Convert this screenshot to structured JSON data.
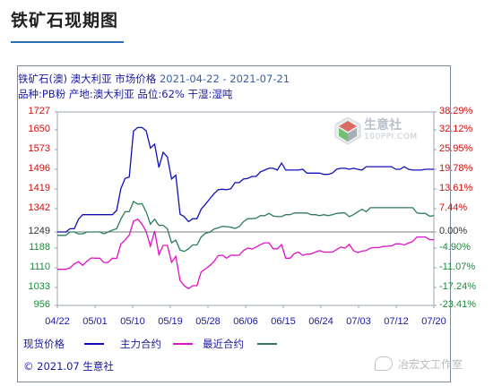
{
  "page_title": "铁矿石现期图",
  "header": {
    "line1_label": "铁矿石(澳) 澳大利亚 市场价格",
    "line1_date": "2021-04-22 - 2021-07-21",
    "line2": "品种:PB粉 产地:澳大利亚 品位:62% 干湿:湿吨"
  },
  "logo": {
    "name": "生意社",
    "url": "100PPI.COM"
  },
  "colors": {
    "spot": "#1010b8",
    "main": "#e010c8",
    "recent": "#2e7d5a",
    "left_axis": "#cc1010",
    "right_axis": "#cc1010",
    "green_text": "#1a8a3a",
    "zero_line": "#7a7a7a"
  },
  "chart_data": {
    "type": "line",
    "title": "铁矿石(澳) 澳大利亚 市场价格",
    "date_range": "2021-04-22 - 2021-07-21",
    "x_tick_labels": [
      "04/22",
      "05/01",
      "05/10",
      "05/19",
      "05/28",
      "06/06",
      "06/15",
      "06/24",
      "07/03",
      "07/12",
      "07/20"
    ],
    "y_left_ticks": [
      "1727",
      "1650",
      "1573",
      "1496",
      "1419",
      "1342",
      "1249",
      "1188",
      "1110",
      "1033",
      "956"
    ],
    "y_right_ticks": [
      "38.29%",
      "32.12%",
      "25.95%",
      "19.78%",
      "13.61%",
      "7.44%",
      "0.00%",
      "-4.90%",
      "-11.07%",
      "-17.24%",
      "-23.41%"
    ],
    "ylim_left": [
      956,
      1727
    ],
    "ylim_right": [
      -23.41,
      38.29
    ],
    "legend_placement": "bottom",
    "series": [
      {
        "name": "现货价格",
        "key": "spot",
        "x": [
          0,
          2,
          3,
          4,
          5,
          6,
          7,
          8,
          9,
          10,
          11,
          12,
          13,
          14,
          15,
          16,
          17,
          18,
          19,
          20,
          21,
          22,
          23,
          24,
          25,
          26,
          27,
          28,
          29,
          30,
          31,
          32,
          33,
          34,
          35,
          36,
          37,
          38,
          39,
          40,
          41,
          42,
          43,
          44,
          45,
          46,
          47,
          48,
          49,
          50,
          51,
          52,
          53,
          54,
          55,
          56,
          57,
          58,
          59,
          60,
          61,
          62,
          63,
          64,
          65,
          66,
          67,
          68,
          69,
          70,
          71,
          72,
          73,
          74,
          75,
          76,
          77,
          78,
          79,
          80,
          81,
          82,
          83,
          84,
          85,
          86,
          87,
          88,
          89
        ],
        "values": [
          1249,
          1249,
          1262,
          1262,
          1300,
          1318,
          1318,
          1318,
          1318,
          1318,
          1318,
          1318,
          1318,
          1335,
          1420,
          1460,
          1466,
          1645,
          1660,
          1660,
          1646,
          1579,
          1594,
          1503,
          1562,
          1544,
          1458,
          1473,
          1320,
          1310,
          1290,
          1302,
          1302,
          1340,
          1360,
          1380,
          1400,
          1416,
          1418,
          1416,
          1420,
          1444,
          1444,
          1458,
          1460,
          1468,
          1468,
          1486,
          1493,
          1500,
          1500,
          1493,
          1520,
          1493,
          1493,
          1493,
          1493,
          1496,
          1481,
          1481,
          1481,
          1481,
          1476,
          1476,
          1481,
          1496,
          1500,
          1500,
          1496,
          1500,
          1496,
          1493,
          1506,
          1506,
          1506,
          1506,
          1506,
          1506,
          1506,
          1496,
          1496,
          1506,
          1496,
          1493,
          1493,
          1493,
          1496,
          1496,
          1496
        ]
      },
      {
        "name": "主力合约",
        "key": "main",
        "x": [
          0,
          2,
          3,
          4,
          5,
          6,
          7,
          8,
          9,
          10,
          11,
          12,
          13,
          14,
          15,
          16,
          17,
          18,
          19,
          20,
          21,
          22,
          23,
          24,
          25,
          26,
          27,
          28,
          29,
          30,
          31,
          32,
          33,
          34,
          35,
          36,
          37,
          38,
          39,
          40,
          41,
          42,
          43,
          44,
          45,
          46,
          47,
          48,
          49,
          50,
          51,
          52,
          53,
          54,
          55,
          56,
          57,
          58,
          59,
          60,
          61,
          62,
          63,
          64,
          65,
          66,
          67,
          68,
          69,
          70,
          71,
          72,
          73,
          74,
          75,
          76,
          77,
          78,
          79,
          80,
          81,
          82,
          83,
          84,
          85,
          86,
          87,
          88,
          89
        ],
        "values": [
          1104,
          1104,
          1110,
          1126,
          1134,
          1120,
          1136,
          1149,
          1148,
          1148,
          1131,
          1131,
          1148,
          1147,
          1203,
          1219,
          1237,
          1292,
          1300,
          1280,
          1250,
          1195,
          1253,
          1162,
          1198,
          1198,
          1132,
          1155,
          1060,
          1040,
          1028,
          1040,
          1040,
          1094,
          1106,
          1118,
          1134,
          1158,
          1160,
          1148,
          1160,
          1159,
          1160,
          1178,
          1188,
          1184,
          1192,
          1201,
          1208,
          1208,
          1185,
          1185,
          1201,
          1148,
          1148,
          1166,
          1172,
          1159,
          1164,
          1165,
          1172,
          1178,
          1172,
          1172,
          1172,
          1182,
          1192,
          1188,
          1202,
          1178,
          1170,
          1176,
          1178,
          1188,
          1190,
          1190,
          1194,
          1195,
          1196,
          1204,
          1204,
          1200,
          1207,
          1213,
          1230,
          1230,
          1230,
          1220,
          1220
        ]
      },
      {
        "name": "最近合约",
        "key": "recent",
        "x": [
          0,
          2,
          3,
          4,
          5,
          6,
          7,
          8,
          9,
          10,
          11,
          12,
          13,
          14,
          15,
          16,
          17,
          18,
          19,
          20,
          21,
          22,
          23,
          24,
          25,
          26,
          27,
          28,
          29,
          30,
          31,
          32,
          33,
          34,
          35,
          36,
          37,
          38,
          39,
          40,
          41,
          42,
          43,
          44,
          45,
          46,
          47,
          48,
          49,
          50,
          51,
          52,
          53,
          54,
          55,
          56,
          57,
          58,
          59,
          60,
          61,
          62,
          63,
          64,
          65,
          66,
          67,
          68,
          69,
          70,
          71,
          72,
          73,
          74,
          75,
          76,
          77,
          78,
          79,
          80,
          81,
          82,
          83,
          84,
          85,
          86,
          87,
          88,
          89
        ],
        "values": [
          1236,
          1236,
          1249,
          1249,
          1242,
          1242,
          1249,
          1249,
          1249,
          1249,
          1242,
          1249,
          1256,
          1262,
          1300,
          1330,
          1330,
          1370,
          1360,
          1362,
          1329,
          1280,
          1300,
          1275,
          1276,
          1262,
          1208,
          1218,
          1180,
          1175,
          1185,
          1200,
          1200,
          1230,
          1244,
          1248,
          1260,
          1265,
          1271,
          1270,
          1268,
          1263,
          1270,
          1290,
          1302,
          1302,
          1304,
          1314,
          1314,
          1323,
          1313,
          1310,
          1310,
          1318,
          1318,
          1325,
          1325,
          1325,
          1325,
          1318,
          1318,
          1314,
          1318,
          1314,
          1318,
          1323,
          1325,
          1325,
          1310,
          1318,
          1329,
          1340,
          1330,
          1346,
          1346,
          1346,
          1346,
          1346,
          1346,
          1346,
          1346,
          1346,
          1346,
          1346,
          1325,
          1323,
          1323,
          1312,
          1314
        ]
      }
    ]
  },
  "legend": [
    {
      "label": "现货价格",
      "key": "spot"
    },
    {
      "label": "主力合约",
      "key": "main"
    },
    {
      "label": "最近合约",
      "key": "recent"
    }
  ],
  "footer": "© 2021.07 生意社",
  "watermark": "冶宏文工作室"
}
